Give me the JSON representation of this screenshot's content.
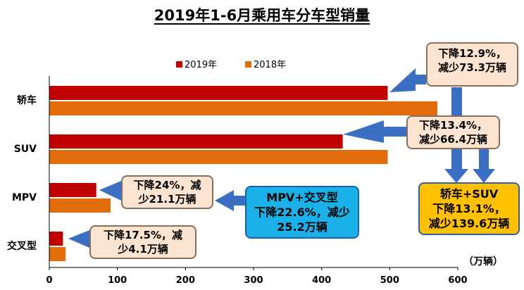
{
  "chart_data": {
    "type": "bar",
    "orientation": "horizontal",
    "title": "2019年1-6月乘用车分车型销量",
    "categories": [
      "轿车",
      "SUV",
      "MPV",
      "交叉型"
    ],
    "series": [
      {
        "name": "2019年",
        "color": "#c00000",
        "values": [
          497,
          431,
          69,
          20
        ]
      },
      {
        "name": "2018年",
        "color": "#e36c0a",
        "values": [
          570,
          497,
          90,
          24
        ]
      }
    ],
    "xlim": [
      0,
      600
    ],
    "xticks": [
      "0",
      "100",
      "200",
      "300",
      "400",
      "500",
      "600"
    ],
    "unit_label": "（万辆）",
    "legend_position": "top",
    "grid": false
  },
  "annotations": {
    "sedan": {
      "line1": "下降12.9%，",
      "line2": "减少73.3万辆"
    },
    "suv": {
      "line1": "下降13.4%，",
      "line2": "减少66.4万辆"
    },
    "mpv": {
      "line1": "下降24%，减",
      "line2": "少21.1万辆"
    },
    "crossover": {
      "line1": "下降17.5%，减",
      "line2": "少4.1万辆"
    },
    "mpv_crossover": {
      "line1": "MPV+交叉型",
      "line2": "下降22.6%，减少",
      "line3": "25.2万辆"
    },
    "sedan_suv": {
      "line1": "轿车+SUV",
      "line2": "下降13.1%，",
      "line3": "减少139.6万辆"
    }
  },
  "colors": {
    "arrow": "#3a6fc4",
    "axis": "#000000"
  }
}
